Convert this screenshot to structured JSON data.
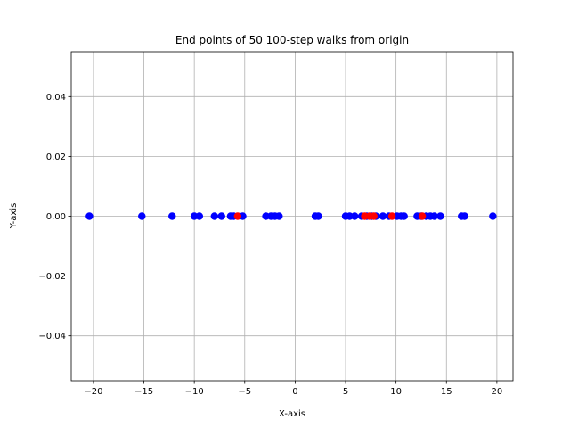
{
  "chart_data": {
    "type": "scatter",
    "title": "End points of 50 100-step walks from origin",
    "xlabel": "X-axis",
    "ylabel": "Y-axis",
    "xlim": [
      -22.2,
      21.6
    ],
    "ylim": [
      -0.055,
      0.055
    ],
    "xticks": [
      -20,
      -15,
      -10,
      -5,
      0,
      5,
      10,
      15,
      20
    ],
    "xtick_labels": [
      "−20",
      "−15",
      "−10",
      "−5",
      "0",
      "5",
      "10",
      "15",
      "20"
    ],
    "yticks": [
      -0.04,
      -0.02,
      0.0,
      0.02,
      0.04
    ],
    "ytick_labels": [
      "−0.04",
      "−0.02",
      "0.00",
      "0.02",
      "0.04"
    ],
    "grid": true,
    "series": [
      {
        "color": "#0000ff",
        "x": [
          -20.4,
          -15.2,
          -12.2,
          -10.0,
          -9.5,
          -8.0,
          -7.3,
          -6.4,
          -6.1,
          -5.2,
          -2.9,
          -2.4,
          -2.0,
          -1.6,
          2.0,
          2.3,
          5.0,
          5.4,
          5.9,
          6.6,
          7.1,
          7.6,
          8.0,
          8.7,
          9.3,
          10.1,
          10.5,
          10.8,
          12.1,
          12.5,
          13.0,
          13.4,
          13.8,
          14.4,
          16.5,
          16.8,
          19.6
        ],
        "y": [
          0,
          0,
          0,
          0,
          0,
          0,
          0,
          0,
          0,
          0,
          0,
          0,
          0,
          0,
          0,
          0,
          0,
          0,
          0,
          0,
          0,
          0,
          0,
          0,
          0,
          0,
          0,
          0,
          0,
          0,
          0,
          0,
          0,
          0,
          0,
          0,
          0
        ]
      },
      {
        "color": "#ff0000",
        "x": [
          -5.7,
          6.9,
          7.4,
          7.8,
          9.6,
          12.6
        ],
        "y": [
          0,
          0,
          0,
          0,
          0,
          0
        ]
      }
    ]
  }
}
